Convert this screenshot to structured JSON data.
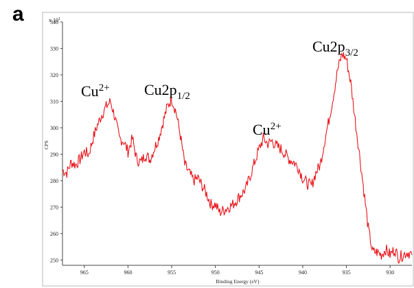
{
  "panel_label": "a",
  "chart_data": {
    "type": "line",
    "xlabel": "Binding Energy (eV)",
    "ylabel": "CPS",
    "y_multiplier": "x 10^1",
    "y_multiplier_base": "x 10",
    "y_multiplier_exp": "1",
    "xlim": [
      967.5,
      927.5
    ],
    "ylim": [
      248,
      340
    ],
    "x_reversed": true,
    "grid": false,
    "line_color": "#e8141a",
    "x_ticks": [
      965,
      960,
      955,
      950,
      945,
      940,
      935,
      930
    ],
    "y_ticks": [
      250,
      260,
      270,
      280,
      290,
      300,
      310,
      320,
      330,
      340
    ],
    "x_tick_labels": [
      "965",
      "960",
      "955",
      "950",
      "945",
      "940",
      "935",
      "930"
    ],
    "y_tick_labels": [
      "250",
      "260",
      "270",
      "280",
      "290",
      "300",
      "310",
      "320",
      "330",
      "340"
    ],
    "series": [
      {
        "x": [
          967.5,
          967.0,
          966.5,
          966.0,
          965.5,
          965.0,
          964.5,
          964.0,
          963.5,
          963.0,
          962.5,
          962.0,
          961.5,
          961.0,
          960.5,
          960.0,
          959.5,
          959.0,
          958.5,
          958.0,
          957.5,
          957.0,
          956.5,
          956.0,
          955.5,
          955.0,
          954.5,
          954.0,
          953.5,
          953.0,
          952.5,
          952.0,
          951.5,
          951.0,
          950.5,
          950.0,
          949.5,
          949.0,
          948.5,
          948.0,
          947.5,
          947.0,
          946.5,
          946.0,
          945.5,
          945.0,
          944.5,
          944.0,
          943.5,
          943.0,
          942.5,
          942.0,
          941.5,
          941.0,
          940.5,
          940.0,
          939.5,
          939.0,
          938.5,
          938.0,
          937.5,
          937.0,
          936.5,
          936.0,
          935.5,
          935.0,
          934.5,
          934.0,
          933.5,
          933.0,
          932.5,
          932.0,
          931.5,
          931.0,
          930.5,
          930.0,
          929.5,
          929.0,
          928.5,
          928.0,
          927.5
        ],
        "y": [
          284,
          283,
          287,
          286,
          288,
          291,
          290,
          296,
          301,
          305,
          308,
          310,
          304,
          296,
          295,
          291,
          296,
          288,
          287,
          290,
          288,
          292,
          296,
          302,
          308,
          311,
          306,
          297,
          286,
          283,
          280,
          281,
          278,
          275,
          271,
          271,
          268,
          269,
          270,
          271,
          273,
          275,
          277,
          282,
          287,
          292,
          296,
          294,
          295,
          293,
          292,
          290,
          288,
          287,
          285,
          281,
          279,
          278,
          283,
          286,
          295,
          303,
          312,
          322,
          328,
          326,
          317,
          303,
          290,
          276,
          262,
          253,
          253,
          252,
          254,
          252,
          254,
          251,
          252,
          253,
          252
        ]
      }
    ],
    "annotations": [
      {
        "base": "Cu",
        "sup": "2+",
        "sub": ""
      },
      {
        "base": "Cu2p",
        "sup": "",
        "sub": "1/2"
      },
      {
        "base": "Cu",
        "sup": "2+",
        "sub": ""
      },
      {
        "base": "Cu2p",
        "sup": "",
        "sub": "3/2"
      }
    ]
  }
}
